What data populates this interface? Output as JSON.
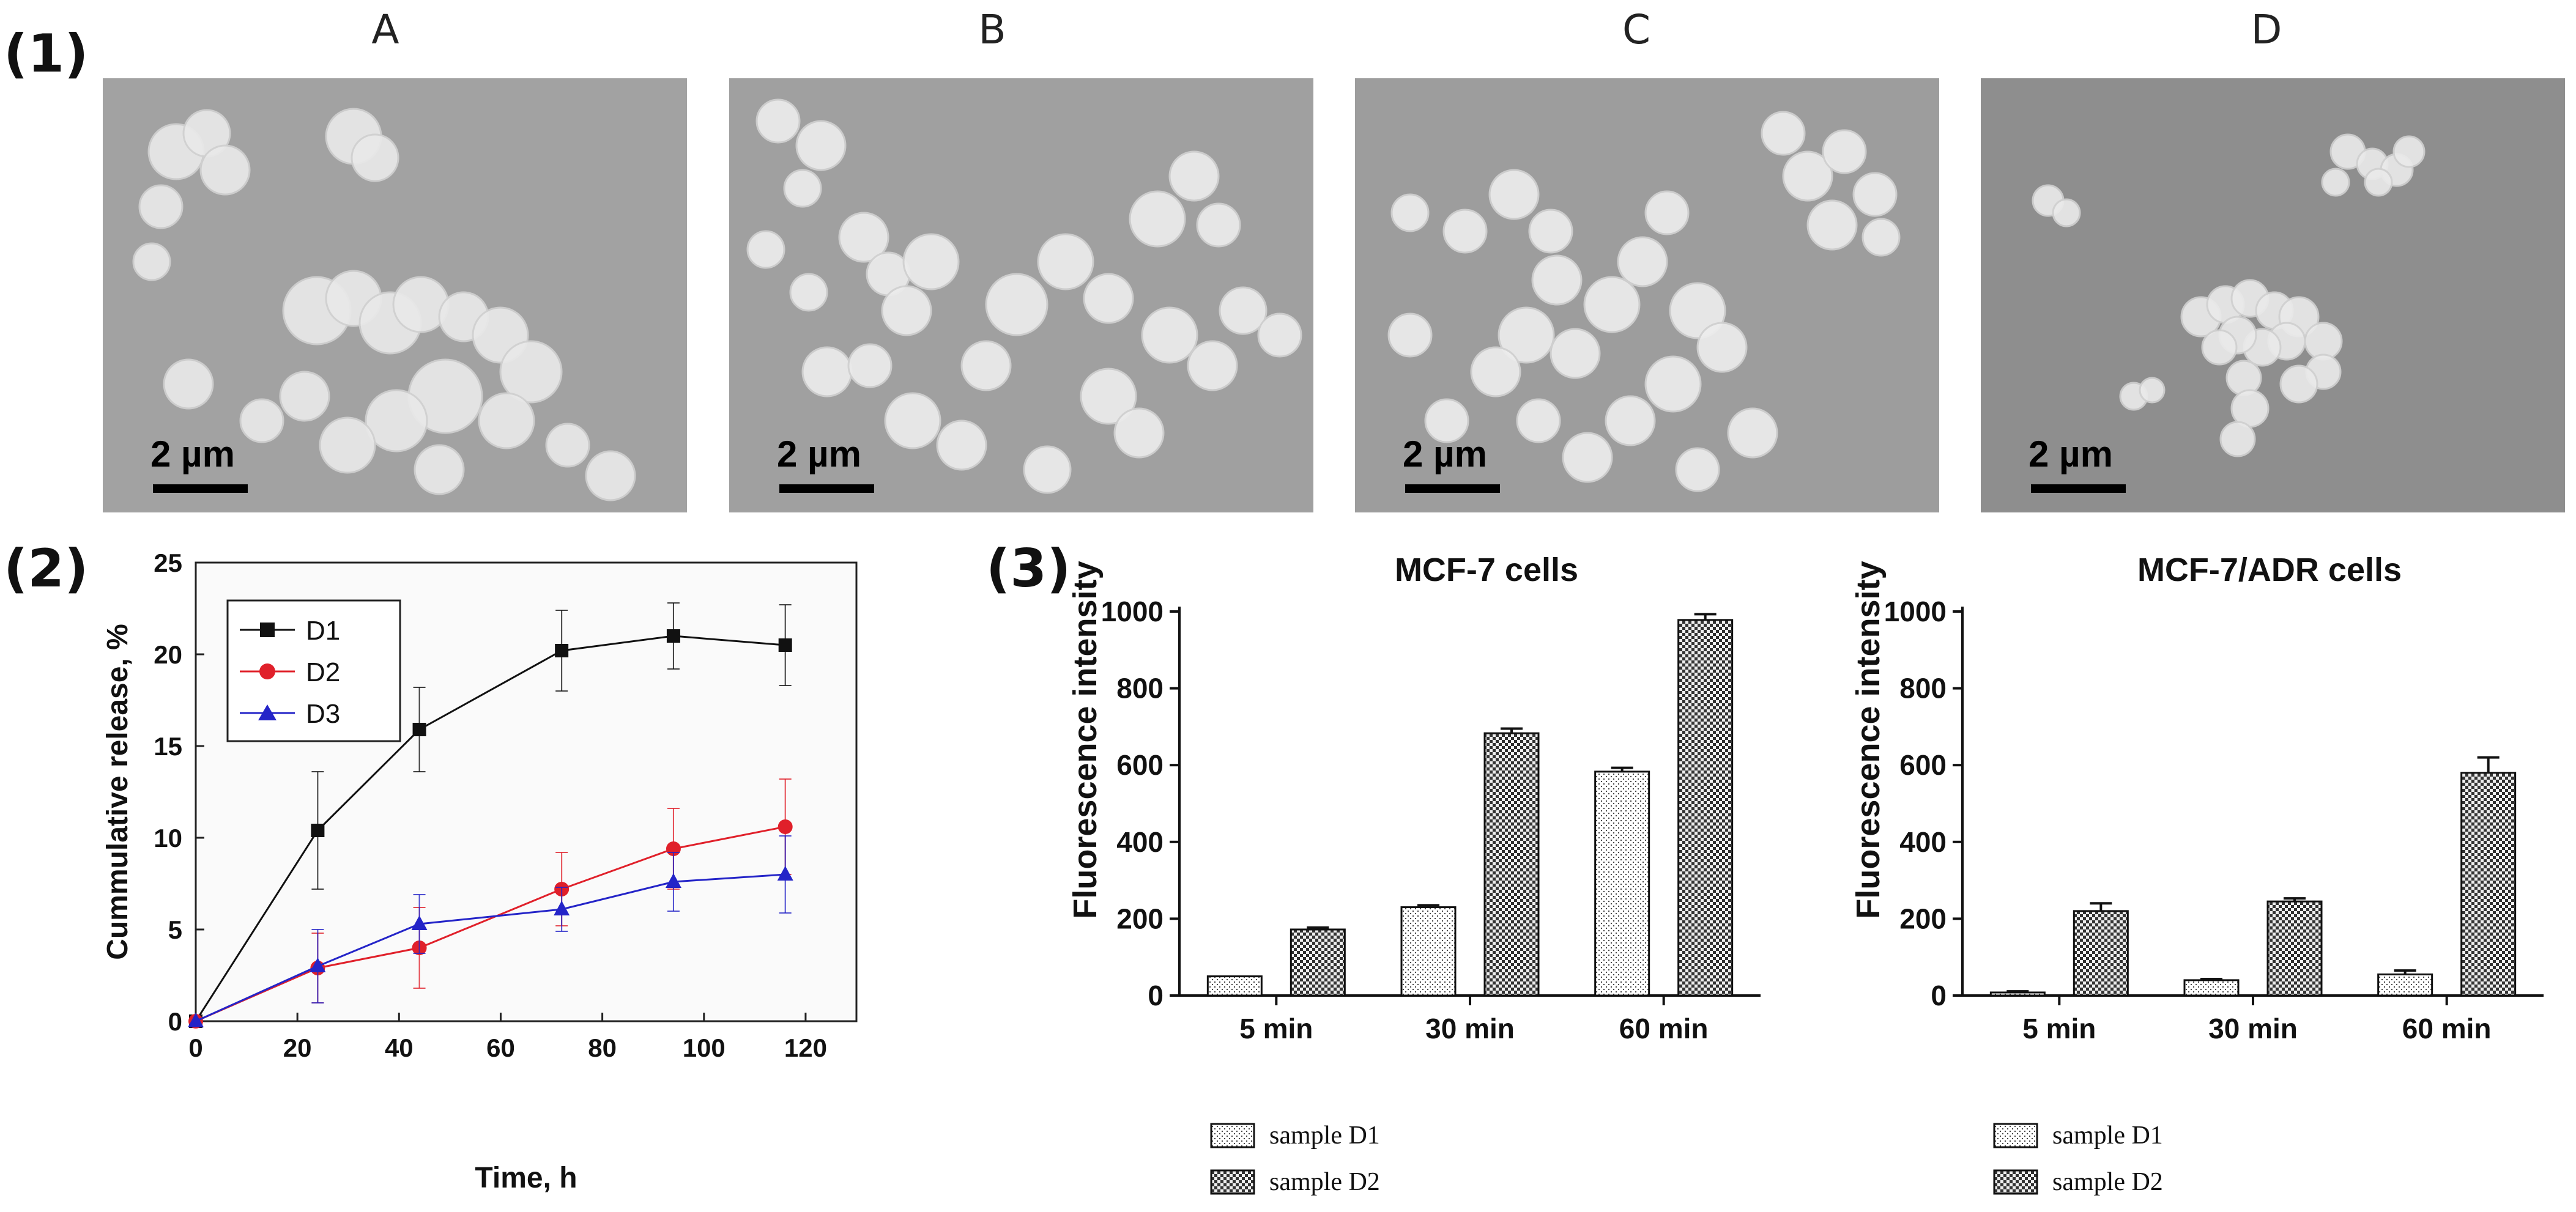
{
  "panel_labels": {
    "p1": "(1)",
    "p2": "(2)",
    "p3": "(3)"
  },
  "sem_images": [
    {
      "title": "A",
      "scale_bar": "2 µm",
      "background": "#a2a2a2",
      "particle_color": "#e9e9e9"
    },
    {
      "title": "B",
      "scale_bar": "2 µm",
      "background": "#a0a0a0",
      "particle_color": "#ececec"
    },
    {
      "title": "C",
      "scale_bar": "2 µm",
      "background": "#9d9d9d",
      "particle_color": "#ededed"
    },
    {
      "title": "D",
      "scale_bar": "2 µm",
      "background": "#8e8e8e",
      "particle_color": "#eaeaea"
    }
  ],
  "chart_data": [
    {
      "type": "line",
      "title": "",
      "xlabel": "Time, h",
      "ylabel": "Cummulative release, %",
      "xlim": [
        0,
        130
      ],
      "ylim": [
        0,
        25
      ],
      "xticks": [
        0,
        20,
        40,
        60,
        80,
        100,
        120
      ],
      "yticks": [
        0,
        5,
        10,
        15,
        20,
        25
      ],
      "legend_position": "top-left",
      "series": [
        {
          "name": "D1",
          "color": "#111111",
          "marker": "square",
          "x": [
            0,
            24,
            44,
            72,
            94,
            116
          ],
          "y": [
            0,
            10.4,
            15.9,
            20.2,
            21.0,
            20.5
          ],
          "err": [
            0,
            3.2,
            2.3,
            2.2,
            1.8,
            2.2
          ]
        },
        {
          "name": "D2",
          "color": "#e0202a",
          "marker": "circle",
          "x": [
            0,
            24,
            44,
            72,
            94,
            116
          ],
          "y": [
            0,
            2.9,
            4.0,
            7.2,
            9.4,
            10.6
          ],
          "err": [
            0,
            1.9,
            2.2,
            2.0,
            2.2,
            2.6
          ]
        },
        {
          "name": "D3",
          "color": "#2424c8",
          "marker": "triangle",
          "x": [
            0,
            24,
            44,
            72,
            94,
            116
          ],
          "y": [
            0,
            3.0,
            5.3,
            6.1,
            7.6,
            8.0
          ],
          "err": [
            0,
            2.0,
            1.6,
            1.2,
            1.6,
            2.1
          ]
        }
      ]
    },
    {
      "type": "bar",
      "title": "MCF-7 cells",
      "xlabel": "",
      "ylabel": "Fluorescence intensity",
      "ylim": [
        0,
        1000
      ],
      "yticks": [
        0,
        200,
        400,
        600,
        800,
        1000
      ],
      "categories": [
        "5 min",
        "30 min",
        "60 min"
      ],
      "series": [
        {
          "name": "sample D1",
          "pattern": "dots",
          "values": [
            50,
            230,
            583
          ],
          "err": [
            0,
            5,
            10
          ]
        },
        {
          "name": "sample D2",
          "pattern": "checker",
          "values": [
            172,
            683,
            978
          ],
          "err": [
            5,
            12,
            15
          ]
        }
      ]
    },
    {
      "type": "bar",
      "title": "MCF-7/ADR cells",
      "xlabel": "",
      "ylabel": "Fluorescence intensity",
      "ylim": [
        0,
        1000
      ],
      "yticks": [
        0,
        200,
        400,
        600,
        800,
        1000
      ],
      "categories": [
        "5 min",
        "30 min",
        "60 min"
      ],
      "series": [
        {
          "name": "sample D1",
          "pattern": "dots",
          "values": [
            8,
            40,
            55
          ],
          "err": [
            3,
            3,
            10
          ]
        },
        {
          "name": "sample D2",
          "pattern": "checker",
          "values": [
            220,
            245,
            580
          ],
          "err": [
            20,
            8,
            40
          ]
        }
      ]
    }
  ]
}
